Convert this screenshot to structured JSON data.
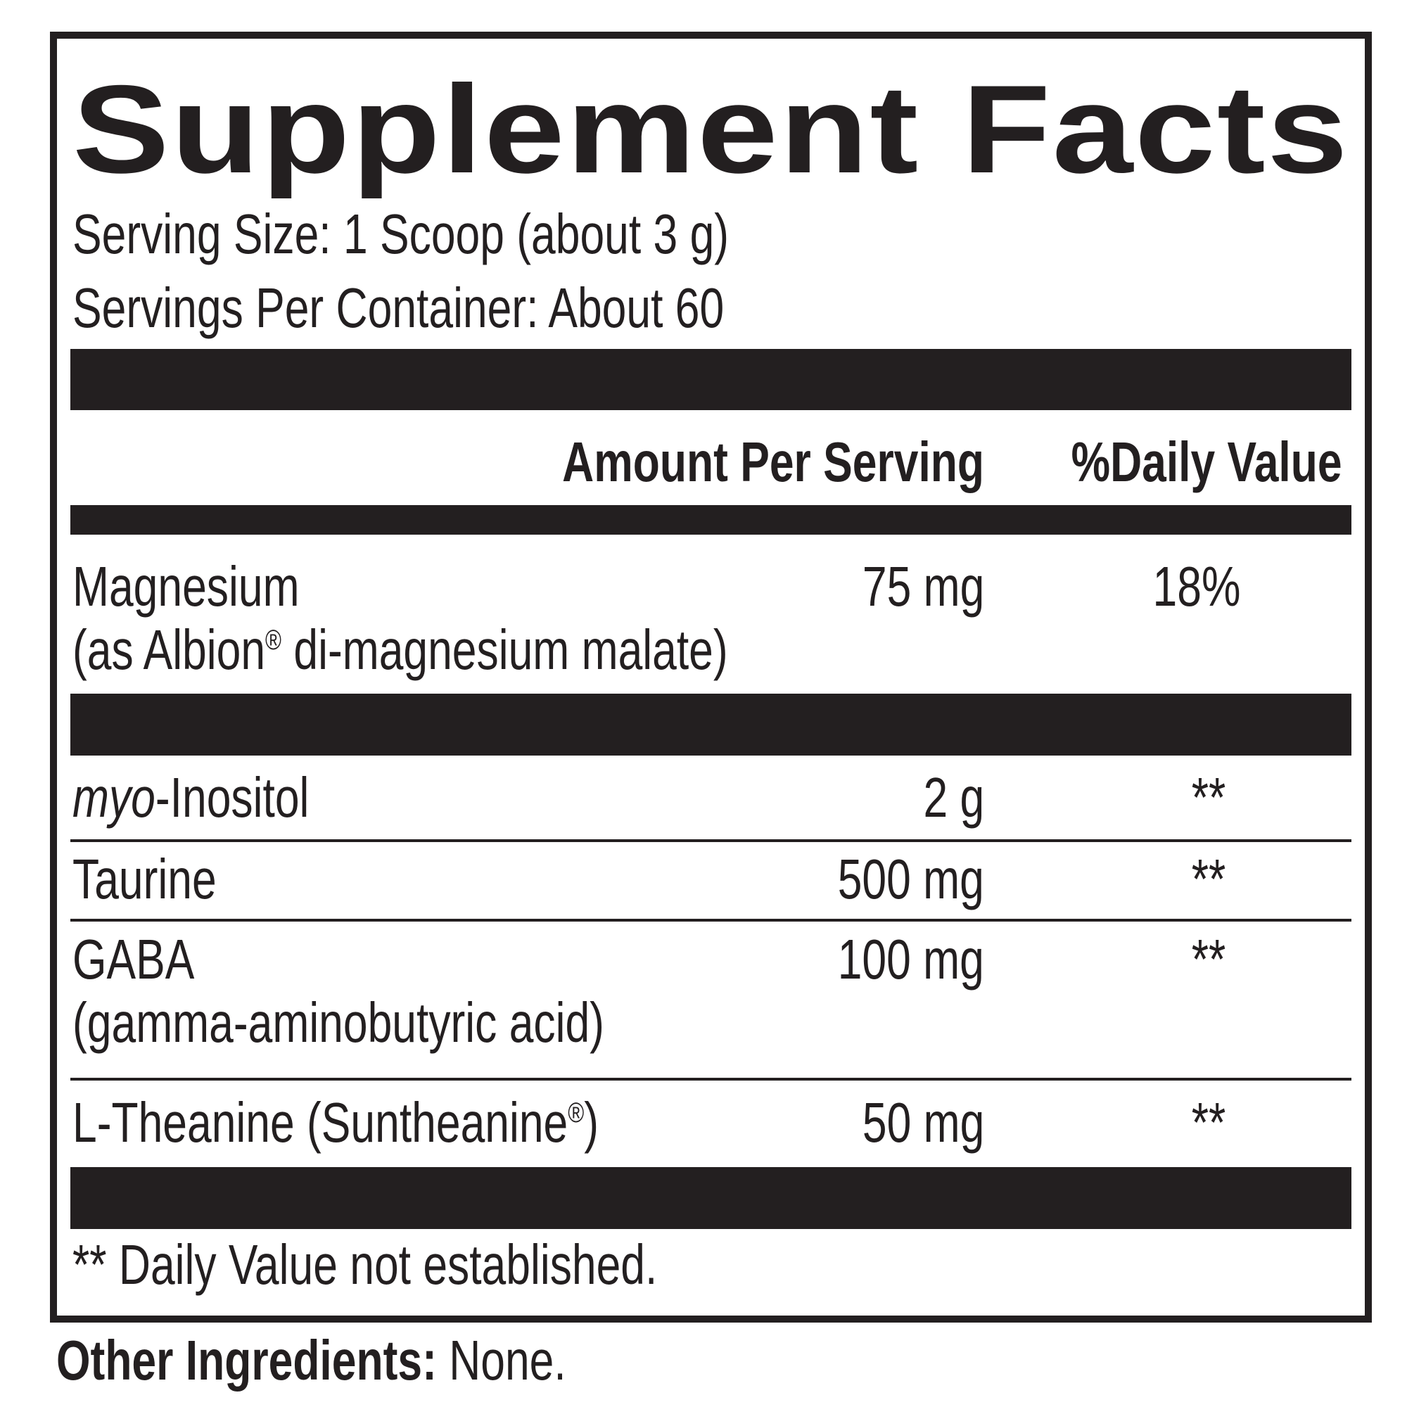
{
  "label": {
    "title": "Supplement Facts",
    "serving_size": "Serving Size: 1 Scoop (about 3 g)",
    "servings_per_container": "Servings Per Container: About 60",
    "columns": {
      "amount": "Amount Per Serving",
      "daily_value": "%Daily Value"
    },
    "rows": [
      {
        "name": "Magnesium",
        "sub_prefix": "(as Albion",
        "sub_mark": "®",
        "sub_suffix": " di-magnesium malate)",
        "amount": "75 mg",
        "dv": "18%"
      },
      {
        "name_italic": "myo",
        "name": "-Inositol",
        "amount": "2 g",
        "dv": "**"
      },
      {
        "name": "Taurine",
        "amount": "500 mg",
        "dv": "**"
      },
      {
        "name": "GABA",
        "sub": "(gamma-aminobutyric acid)",
        "amount": "100 mg",
        "dv": "**"
      },
      {
        "name": "L-Theanine (Suntheanine",
        "mark": "®",
        "name_suffix": ")",
        "amount": "50 mg",
        "dv": "**"
      }
    ],
    "footnote": "** Daily Value not established."
  },
  "other_ingredients": {
    "label": "Other Ingredients:",
    "value": " None."
  }
}
